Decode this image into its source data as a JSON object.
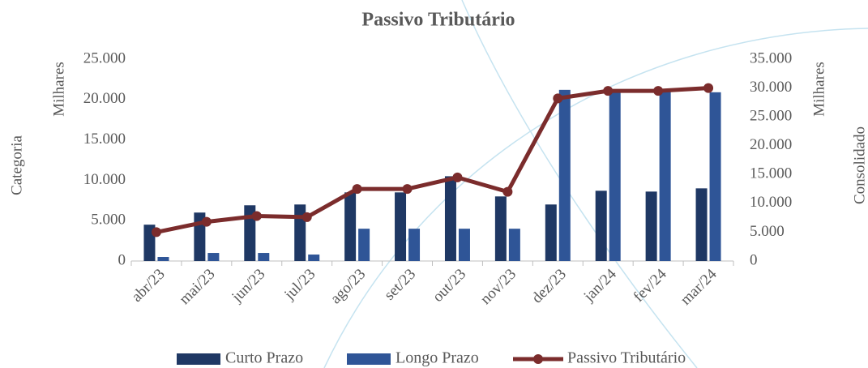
{
  "chart_data": {
    "type": "bar_line",
    "title": "Passivo Tributário",
    "categories": [
      "abr/23",
      "mai/23",
      "jun/23",
      "jul/23",
      "ago/23",
      "set/23",
      "out/23",
      "nov/23",
      "dez/23",
      "jan/24",
      "fev/24",
      "mar/24"
    ],
    "series": [
      {
        "name": "Curto Prazo",
        "type": "bar",
        "color": "#1f3864",
        "values": [
          4500,
          6000,
          6900,
          7000,
          8500,
          8500,
          10500,
          8000,
          7000,
          8700,
          8600,
          9000
        ]
      },
      {
        "name": "Longo Prazo",
        "type": "bar",
        "color": "#2f5597",
        "values": [
          500,
          1000,
          1000,
          800,
          4000,
          4000,
          4000,
          4000,
          21200,
          21000,
          21000,
          20900
        ]
      },
      {
        "name": "Passivo Tributário",
        "type": "line",
        "axis": "y2",
        "color": "#7b2c2c",
        "values": [
          5000,
          6800,
          7800,
          7600,
          12500,
          12500,
          14500,
          12000,
          28200,
          29500,
          29500,
          30000
        ]
      }
    ],
    "y_label": "Categoria",
    "y_unit": "Milhares",
    "y2_label": "Consolidado",
    "y2_unit": "Milhares",
    "ylim": [
      0,
      25000
    ],
    "yticks": [
      0,
      {
        "value": 5000,
        "label": "5.000"
      },
      {
        "value": 10000,
        "label": "10.000"
      },
      {
        "value": 15000,
        "label": "15.000"
      },
      {
        "value": 20000,
        "label": "20.000"
      },
      {
        "value": 25000,
        "label": "25.000"
      }
    ],
    "y2lim": [
      0,
      35000
    ],
    "y2ticks": [
      0,
      {
        "value": 5000,
        "label": "5.000"
      },
      {
        "value": 10000,
        "label": "10.000"
      },
      {
        "value": 15000,
        "label": "15.000"
      },
      {
        "value": 20000,
        "label": "20.000"
      },
      {
        "value": 25000,
        "label": "25.000"
      },
      {
        "value": 30000,
        "label": "30.000"
      },
      {
        "value": 35000,
        "label": "35.000"
      }
    ],
    "legend": "bottom"
  }
}
